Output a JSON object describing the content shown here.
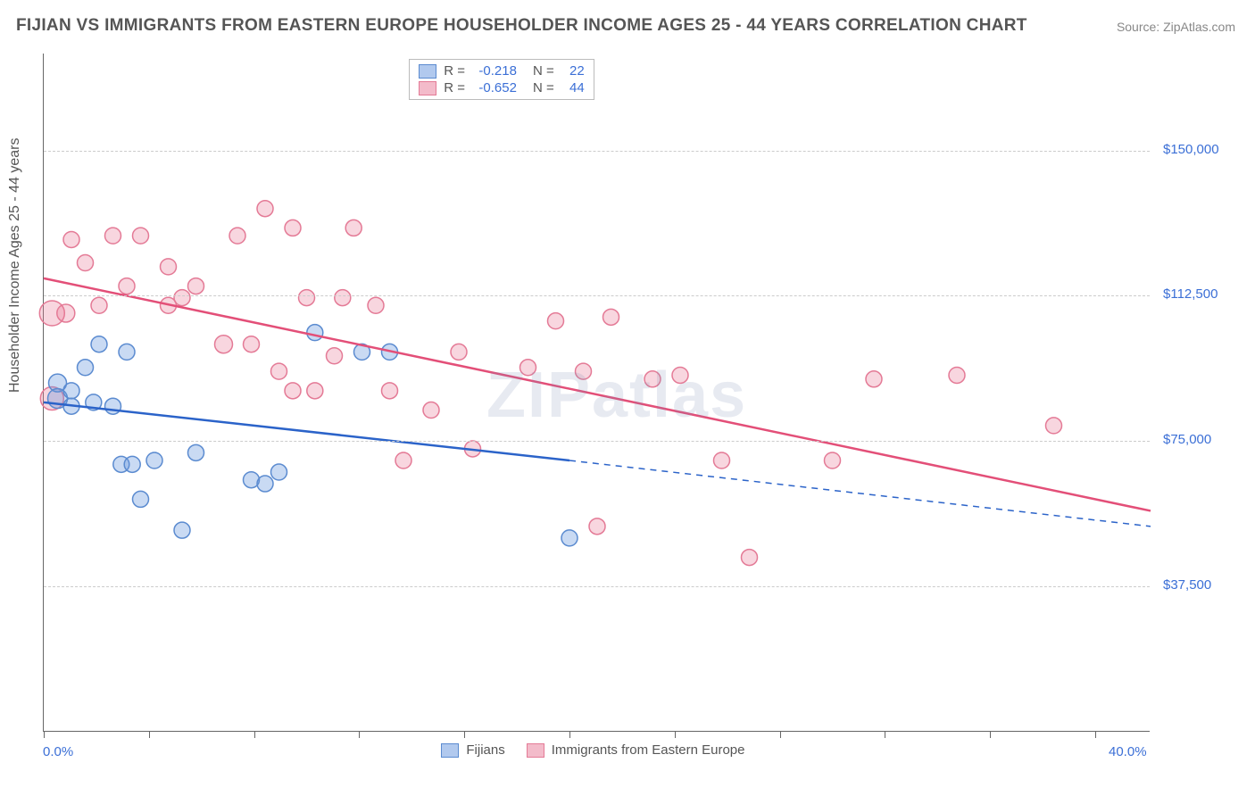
{
  "title": "FIJIAN VS IMMIGRANTS FROM EASTERN EUROPE HOUSEHOLDER INCOME AGES 25 - 44 YEARS CORRELATION CHART",
  "source": "Source: ZipAtlas.com",
  "watermark": "ZIPatlas",
  "ylabel": "Householder Income Ages 25 - 44 years",
  "chart": {
    "type": "scatter-with-trend",
    "background_color": "#ffffff",
    "grid_color": "#cccccc",
    "axis_color": "#666666",
    "text_color": "#555555",
    "value_color": "#3b6fd6",
    "xlim": [
      0.0,
      40.0
    ],
    "ylim": [
      0,
      175000
    ],
    "xtick_label_min": "0.0%",
    "xtick_label_max": "40.0%",
    "xtick_positions": [
      0.0,
      3.8,
      7.6,
      11.4,
      15.2,
      19.0,
      22.8,
      26.6,
      30.4,
      34.2,
      38.0
    ],
    "ytick_labels": [
      {
        "v": 37500,
        "label": "$37,500"
      },
      {
        "v": 75000,
        "label": "$75,000"
      },
      {
        "v": 112500,
        "label": "$112,500"
      },
      {
        "v": 150000,
        "label": "$150,000"
      }
    ],
    "label_fontsize": 16,
    "tick_fontsize": 15
  },
  "legend_top": {
    "rows": [
      {
        "key": "fijians",
        "r_label": "R =",
        "r": "-0.218",
        "n_label": "N =",
        "n": "22"
      },
      {
        "key": "eeurope",
        "r_label": "R =",
        "r": "-0.652",
        "n_label": "N =",
        "n": "44"
      }
    ]
  },
  "legend_bottom": {
    "items": [
      {
        "key": "fijians",
        "label": "Fijians"
      },
      {
        "key": "eeurope",
        "label": "Immigrants from Eastern Europe"
      }
    ]
  },
  "series": {
    "fijians": {
      "marker_fill": "rgba(99,148,222,0.35)",
      "marker_stroke": "#5b8bd0",
      "line_color": "#2b63c9",
      "line_width": 2.5,
      "swatch_fill": "rgba(99,148,222,0.5)",
      "swatch_stroke": "#5b8bd0",
      "trend": {
        "x1": 0.0,
        "y1": 85000,
        "x2": 19.0,
        "y2": 70000
      },
      "trend_ext": {
        "x1": 19.0,
        "y1": 70000,
        "x2": 40.0,
        "y2": 53000
      },
      "points": [
        {
          "x": 0.5,
          "y": 90000,
          "r": 10
        },
        {
          "x": 0.5,
          "y": 86000,
          "r": 11
        },
        {
          "x": 1.0,
          "y": 88000,
          "r": 9
        },
        {
          "x": 1.0,
          "y": 84000,
          "r": 9
        },
        {
          "x": 1.5,
          "y": 94000,
          "r": 9
        },
        {
          "x": 1.8,
          "y": 85000,
          "r": 9
        },
        {
          "x": 2.0,
          "y": 100000,
          "r": 9
        },
        {
          "x": 2.5,
          "y": 84000,
          "r": 9
        },
        {
          "x": 2.8,
          "y": 69000,
          "r": 9
        },
        {
          "x": 3.0,
          "y": 98000,
          "r": 9
        },
        {
          "x": 3.2,
          "y": 69000,
          "r": 9
        },
        {
          "x": 3.5,
          "y": 60000,
          "r": 9
        },
        {
          "x": 4.0,
          "y": 70000,
          "r": 9
        },
        {
          "x": 5.0,
          "y": 52000,
          "r": 9
        },
        {
          "x": 5.5,
          "y": 72000,
          "r": 9
        },
        {
          "x": 7.5,
          "y": 65000,
          "r": 9
        },
        {
          "x": 8.0,
          "y": 64000,
          "r": 9
        },
        {
          "x": 8.5,
          "y": 67000,
          "r": 9
        },
        {
          "x": 9.8,
          "y": 103000,
          "r": 9
        },
        {
          "x": 11.5,
          "y": 98000,
          "r": 9
        },
        {
          "x": 12.5,
          "y": 98000,
          "r": 9
        },
        {
          "x": 19.0,
          "y": 50000,
          "r": 9
        }
      ]
    },
    "eeurope": {
      "marker_fill": "rgba(231,120,150,0.30)",
      "marker_stroke": "#e47a96",
      "line_color": "#e34f78",
      "line_width": 2.5,
      "swatch_fill": "rgba(231,120,150,0.5)",
      "swatch_stroke": "#e47a96",
      "trend": {
        "x1": 0.0,
        "y1": 117000,
        "x2": 40.0,
        "y2": 57000
      },
      "points": [
        {
          "x": 0.3,
          "y": 108000,
          "r": 14
        },
        {
          "x": 0.3,
          "y": 86000,
          "r": 13
        },
        {
          "x": 0.8,
          "y": 108000,
          "r": 10
        },
        {
          "x": 1.0,
          "y": 127000,
          "r": 9
        },
        {
          "x": 1.5,
          "y": 121000,
          "r": 9
        },
        {
          "x": 2.0,
          "y": 110000,
          "r": 9
        },
        {
          "x": 2.5,
          "y": 128000,
          "r": 9
        },
        {
          "x": 3.0,
          "y": 115000,
          "r": 9
        },
        {
          "x": 3.5,
          "y": 128000,
          "r": 9
        },
        {
          "x": 4.5,
          "y": 120000,
          "r": 9
        },
        {
          "x": 4.5,
          "y": 110000,
          "r": 9
        },
        {
          "x": 5.0,
          "y": 112000,
          "r": 9
        },
        {
          "x": 5.5,
          "y": 115000,
          "r": 9
        },
        {
          "x": 6.5,
          "y": 100000,
          "r": 10
        },
        {
          "x": 7.0,
          "y": 128000,
          "r": 9
        },
        {
          "x": 7.5,
          "y": 100000,
          "r": 9
        },
        {
          "x": 8.0,
          "y": 135000,
          "r": 9
        },
        {
          "x": 8.5,
          "y": 93000,
          "r": 9
        },
        {
          "x": 9.0,
          "y": 130000,
          "r": 9
        },
        {
          "x": 9.0,
          "y": 88000,
          "r": 9
        },
        {
          "x": 9.5,
          "y": 112000,
          "r": 9
        },
        {
          "x": 9.8,
          "y": 88000,
          "r": 9
        },
        {
          "x": 10.5,
          "y": 97000,
          "r": 9
        },
        {
          "x": 10.8,
          "y": 112000,
          "r": 9
        },
        {
          "x": 11.2,
          "y": 130000,
          "r": 9
        },
        {
          "x": 12.0,
          "y": 110000,
          "r": 9
        },
        {
          "x": 12.5,
          "y": 88000,
          "r": 9
        },
        {
          "x": 13.0,
          "y": 70000,
          "r": 9
        },
        {
          "x": 14.0,
          "y": 83000,
          "r": 9
        },
        {
          "x": 15.0,
          "y": 98000,
          "r": 9
        },
        {
          "x": 15.5,
          "y": 73000,
          "r": 9
        },
        {
          "x": 17.5,
          "y": 94000,
          "r": 9
        },
        {
          "x": 18.5,
          "y": 106000,
          "r": 9
        },
        {
          "x": 19.5,
          "y": 93000,
          "r": 9
        },
        {
          "x": 20.0,
          "y": 53000,
          "r": 9
        },
        {
          "x": 20.5,
          "y": 107000,
          "r": 9
        },
        {
          "x": 22.0,
          "y": 91000,
          "r": 9
        },
        {
          "x": 23.0,
          "y": 92000,
          "r": 9
        },
        {
          "x": 24.5,
          "y": 70000,
          "r": 9
        },
        {
          "x": 25.5,
          "y": 45000,
          "r": 9
        },
        {
          "x": 28.5,
          "y": 70000,
          "r": 9
        },
        {
          "x": 30.0,
          "y": 91000,
          "r": 9
        },
        {
          "x": 33.0,
          "y": 92000,
          "r": 9
        },
        {
          "x": 36.5,
          "y": 79000,
          "r": 9
        }
      ]
    }
  }
}
